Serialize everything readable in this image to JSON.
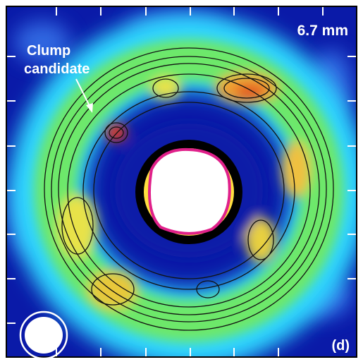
{
  "labels": {
    "wavelength": "6.7 mm",
    "annotation": [
      "Clump",
      "candidate"
    ],
    "panel": "(d)"
  }
}
